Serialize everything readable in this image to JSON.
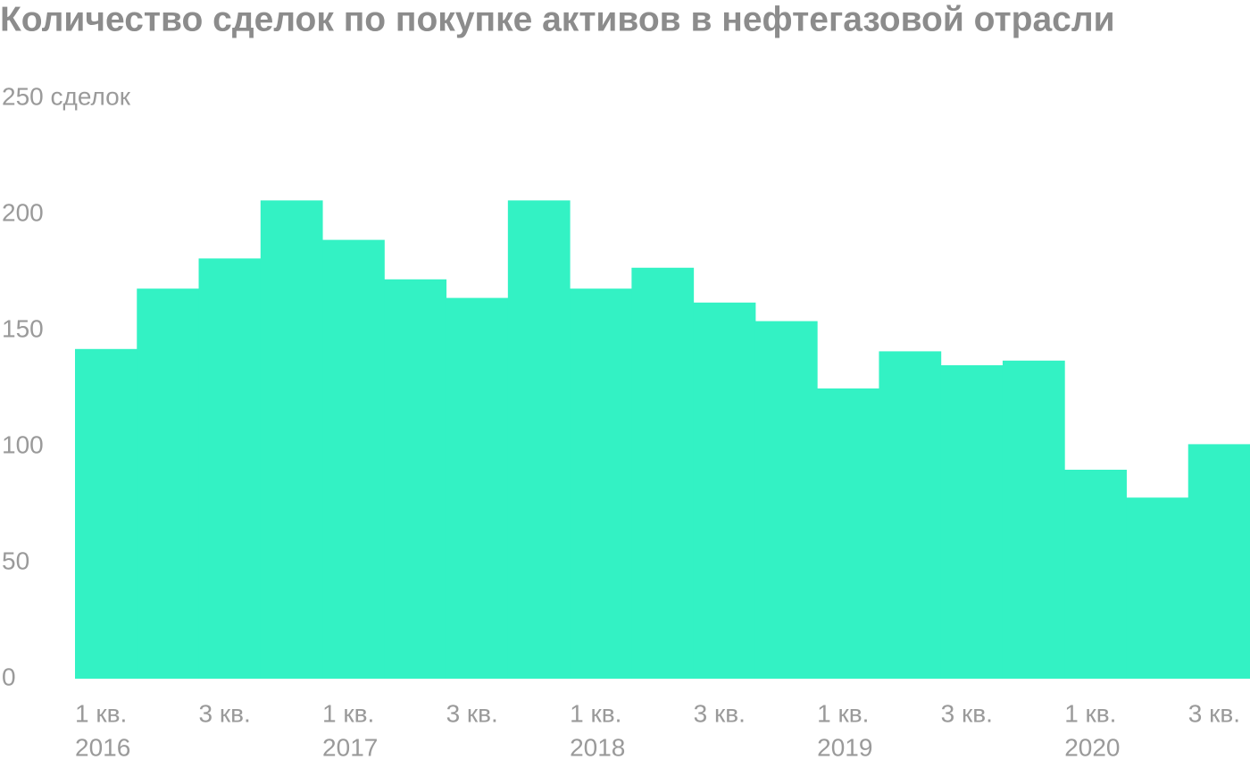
{
  "chart_data": {
    "type": "bar",
    "title": "Количество сделок по покупке активов в нефтегазовой отрасли",
    "categories": [
      [
        "1 кв.",
        "2016"
      ],
      null,
      [
        "3 кв."
      ],
      null,
      [
        "1 кв.",
        "2017"
      ],
      null,
      [
        "3 кв."
      ],
      null,
      [
        "1 кв.",
        "2018"
      ],
      null,
      [
        "3 кв."
      ],
      null,
      [
        "1 кв.",
        "2019"
      ],
      null,
      [
        "3 кв."
      ],
      null,
      [
        "1 кв.",
        "2020"
      ],
      null,
      [
        "3 кв."
      ]
    ],
    "values": [
      142,
      168,
      181,
      206,
      189,
      172,
      164,
      206,
      168,
      177,
      162,
      154,
      125,
      141,
      135,
      137,
      90,
      78,
      101
    ],
    "color": "#33f2c4",
    "ylim": [
      0,
      250
    ],
    "yticks": [
      0,
      50,
      100,
      150,
      200,
      {
        "value": 250,
        "label": "250 сделок"
      }
    ],
    "grid": false
  }
}
